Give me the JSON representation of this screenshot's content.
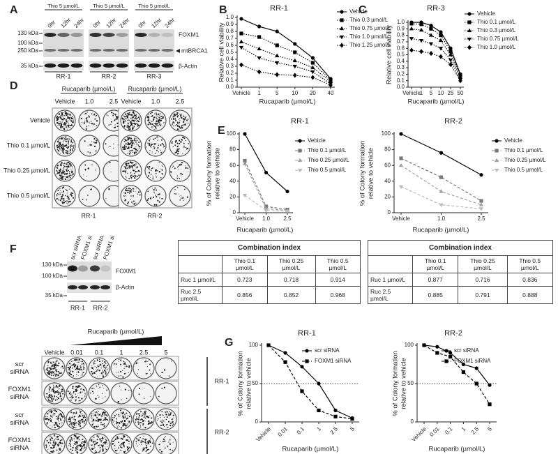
{
  "panel_labels": [
    "A",
    "B",
    "C",
    "D",
    "E",
    "F",
    "G"
  ],
  "blot_a": {
    "treatment": "Thio 5 µmol/L",
    "times": [
      "0hr",
      "12hr",
      "24hr"
    ],
    "markers": [
      "130 kDa",
      "100 kDa",
      "250 kDa",
      "35 kDa"
    ],
    "proteins": [
      "FOXM1",
      "mtBRCA1",
      "β-Actin"
    ],
    "lines": [
      "RR-1",
      "RR-2",
      "RR-3"
    ]
  },
  "colony_d": {
    "axis_title": "Rucaparib (µmol/L)",
    "doses": [
      "Vehicle",
      "1.0",
      "2.5"
    ],
    "rows": [
      "Vehicle",
      "Thio 0.1 µmol/L",
      "Thio 0.25 µmol/L",
      "Thio 0.5 µmol/L"
    ],
    "lines": [
      "RR-1",
      "RR-2"
    ]
  },
  "blot_f": {
    "lanes": [
      "scr siRNA",
      "FOXM1 si",
      "scr siRNA",
      "FOXM1 si"
    ],
    "markers": [
      "130 kDa",
      "100 kDa",
      "35 kDa"
    ],
    "proteins": [
      "FOXM1",
      "β-Actin"
    ],
    "lines": [
      "RR-1",
      "RR-2"
    ]
  },
  "tables": [
    {
      "title": "Combination index",
      "columns": [
        "Thio 0.1 µmol/L",
        "Thio 0.25 µmol/L",
        "Thio 0.5 µmol/L"
      ],
      "rows": [
        [
          "Ruc 1 µmol/L",
          "0.723",
          "0.718",
          "0.914"
        ],
        [
          "Ruc 2.5 µmol/L",
          "0.856",
          "0.852",
          "0.968"
        ]
      ]
    },
    {
      "title": "Combination index",
      "columns": [
        "Thio 0.1 µmol/L",
        "Thio 0.25 µmol/L",
        "Thio 0.5 µmol/L"
      ],
      "rows": [
        [
          "Ruc 1 µmol/L",
          "0.877",
          "0.716",
          "0.836"
        ],
        [
          "Ruc 2.5 µmol/L",
          "0.885",
          "0.791",
          "0.888"
        ]
      ]
    }
  ],
  "colony_g": {
    "axis_title": "Rucaparib (µmol/L)",
    "doses": [
      "Vehicle",
      "0.01",
      "0.1",
      "1",
      "2.5",
      "5"
    ],
    "rows": [
      "scr siRNA",
      "FOXM1 siRNA",
      "scr siRNA",
      "FOXM1 siRNA"
    ],
    "lines": [
      "RR-1",
      "RR-2"
    ]
  },
  "chart_data": [
    {
      "type": "line",
      "title": "RR-1",
      "xlabel": "Rucaparib (µmol/L)",
      "ylabel": [
        "Relative cell viability"
      ],
      "categories": [
        "Vehicle",
        "1",
        "5",
        "10",
        "20",
        "40"
      ],
      "ylim": [
        0,
        1
      ],
      "yticks": [
        {
          "value": 0,
          "label": "0.0"
        },
        0.1,
        0.2,
        0.3,
        0.4,
        0.5,
        0.6,
        0.7,
        0.8,
        0.9,
        {
          "value": 1,
          "label": "1.0"
        }
      ],
      "legend": "right",
      "series": [
        {
          "name": "Vehicle",
          "color": "#000000",
          "marker": "circle",
          "line_style": "solid",
          "values": [
            0.98,
            0.87,
            0.8,
            0.62,
            0.42,
            0.12
          ]
        },
        {
          "name": "Thio 0.3 µmol/L",
          "color": "#000000",
          "marker": "square",
          "line_style": "dotted",
          "values": [
            0.77,
            0.72,
            0.6,
            0.5,
            0.35,
            0.1
          ]
        },
        {
          "name": "Thio 0.75 µmol/L",
          "color": "#000000",
          "marker": "triangle",
          "line_style": "dotted",
          "values": [
            0.65,
            0.55,
            0.45,
            0.38,
            0.28,
            0.08
          ]
        },
        {
          "name": "Thio 1.0 µmol/L",
          "color": "#000000",
          "marker": "triangle-down",
          "line_style": "dotted",
          "values": [
            0.57,
            0.42,
            0.35,
            0.3,
            0.22,
            0.05
          ]
        },
        {
          "name": "Thio 1.25 µmol/L",
          "color": "#000000",
          "marker": "diamond",
          "line_style": "dotted",
          "values": [
            0.32,
            0.22,
            0.18,
            0.17,
            0.14,
            0.03
          ]
        }
      ]
    },
    {
      "type": "line",
      "title": "RR-3",
      "xlabel": "Rucaparib (µmol/L)",
      "ylabel": [
        "Relative cell viability"
      ],
      "categories": [
        "Vehicle",
        "1",
        "5",
        "10",
        "25",
        "50"
      ],
      "ylim": [
        0,
        1
      ],
      "yticks": [
        {
          "value": 0,
          "label": "0.0"
        },
        0.1,
        0.2,
        0.3,
        0.4,
        0.5,
        0.6,
        0.7,
        0.8,
        0.9,
        {
          "value": 1,
          "label": "1.0"
        }
      ],
      "legend": "right",
      "series": [
        {
          "name": "Vehicle",
          "color": "#000000",
          "marker": "circle",
          "line_style": "solid",
          "values": [
            1.0,
            1.0,
            0.95,
            0.85,
            0.6,
            0.2
          ]
        },
        {
          "name": "Thio 0.1 µmol/L",
          "color": "#000000",
          "marker": "square",
          "line_style": "dotted",
          "values": [
            0.98,
            0.97,
            0.9,
            0.8,
            0.55,
            0.18
          ]
        },
        {
          "name": "Thio 0.3 µmol/L",
          "color": "#000000",
          "marker": "triangle",
          "line_style": "dotted",
          "values": [
            0.9,
            0.88,
            0.8,
            0.72,
            0.5,
            0.15
          ]
        },
        {
          "name": "Thio 0.75 µmol/L",
          "color": "#000000",
          "marker": "triangle-down",
          "line_style": "dotted",
          "values": [
            0.75,
            0.72,
            0.67,
            0.6,
            0.42,
            0.12
          ]
        },
        {
          "name": "Thio 1.0 µmol/L",
          "color": "#000000",
          "marker": "diamond",
          "line_style": "dotted",
          "values": [
            0.57,
            0.55,
            0.52,
            0.47,
            0.35,
            0.1
          ]
        }
      ]
    },
    {
      "type": "line",
      "title": "RR-1",
      "xlabel": "Rucaparib (µmol/L)",
      "ylabel": [
        "% of Colony formation",
        "relative to vehicle"
      ],
      "categories": [
        "Vehicle",
        "1.0",
        "2.5"
      ],
      "ylim": [
        0,
        100
      ],
      "yticks": [
        0,
        20,
        40,
        60,
        80,
        100
      ],
      "legend": "right",
      "series": [
        {
          "name": "Vehicle",
          "color": "#000000",
          "marker": "circle",
          "line_style": "solid",
          "values": [
            100,
            51,
            27
          ]
        },
        {
          "name": "Thio 0.1 µmol/L",
          "color": "#777777",
          "marker": "square",
          "line_style": "dashed",
          "values": [
            66,
            8,
            4
          ]
        },
        {
          "name": "Thio 0.25 µmol/L",
          "color": "#a0a0a0",
          "marker": "triangle",
          "line_style": "dashed",
          "values": [
            62,
            5,
            3
          ]
        },
        {
          "name": "Thio 0.5 µmol/L",
          "color": "#bbbbbb",
          "marker": "triangle-down",
          "line_style": "dashed",
          "values": [
            22,
            3,
            2
          ]
        }
      ]
    },
    {
      "type": "line",
      "title": "RR-2",
      "xlabel": "Rucaparib (µmol/L)",
      "ylabel": [
        "% of Colony formation",
        "relative to vehicle"
      ],
      "categories": [
        "Vehicle",
        "1.0",
        "2.5"
      ],
      "ylim": [
        0,
        100
      ],
      "yticks": [
        0,
        20,
        40,
        60,
        80,
        100
      ],
      "legend": "right",
      "series": [
        {
          "name": "Vehicle",
          "color": "#000000",
          "marker": "circle",
          "line_style": "solid",
          "values": [
            100,
            76,
            48
          ]
        },
        {
          "name": "Thio 0.1 µmol/L",
          "color": "#777777",
          "marker": "square",
          "line_style": "dashed",
          "values": [
            69,
            45,
            15
          ]
        },
        {
          "name": "Thio 0.25 µmol/L",
          "color": "#a0a0a0",
          "marker": "triangle",
          "line_style": "dashed",
          "values": [
            60,
            27,
            10
          ]
        },
        {
          "name": "Thio 0.5 µmol/L",
          "color": "#bbbbbb",
          "marker": "triangle-down",
          "line_style": "dashed",
          "values": [
            33,
            10,
            5
          ]
        }
      ]
    },
    {
      "type": "line",
      "title": "RR-1",
      "xlabel": "Rucaparib (µmol/L)",
      "ylabel": [
        "% of Colony formation",
        "relative to vehicle"
      ],
      "categories": [
        "Vehicle",
        "0.01",
        "0.1",
        "1",
        "2.5",
        "5"
      ],
      "ylim": [
        0,
        100
      ],
      "yticks": [
        0,
        50,
        100
      ],
      "legend": "upper right",
      "reference_y": 50,
      "series": [
        {
          "name": "scr siRNA",
          "color": "#000000",
          "marker": "circle",
          "line_style": "solid",
          "values": [
            100,
            90,
            72,
            50,
            15,
            5
          ]
        },
        {
          "name": "FOXM1 siRNA",
          "color": "#000000",
          "marker": "square",
          "line_style": "dashed",
          "values": [
            100,
            78,
            40,
            15,
            7,
            4
          ]
        }
      ]
    },
    {
      "type": "line",
      "title": "RR-2",
      "xlabel": "Rucaparib (µmol/L)",
      "ylabel": [
        "% of Colony formation",
        "relative to vehicle"
      ],
      "categories": [
        "Vehicle",
        "0.01",
        "0.1",
        "1",
        "2.5",
        "5"
      ],
      "ylim": [
        0,
        100
      ],
      "yticks": [
        0,
        50,
        100
      ],
      "legend": "upper right",
      "reference_y": 50,
      "series": [
        {
          "name": "scr siRNA",
          "color": "#000000",
          "marker": "circle",
          "line_style": "solid",
          "values": [
            100,
            98,
            90,
            75,
            70,
            48
          ]
        },
        {
          "name": "FOXM1 siRNA",
          "color": "#000000",
          "marker": "square",
          "line_style": "dashed",
          "values": [
            100,
            90,
            85,
            65,
            50,
            23
          ]
        }
      ]
    }
  ]
}
